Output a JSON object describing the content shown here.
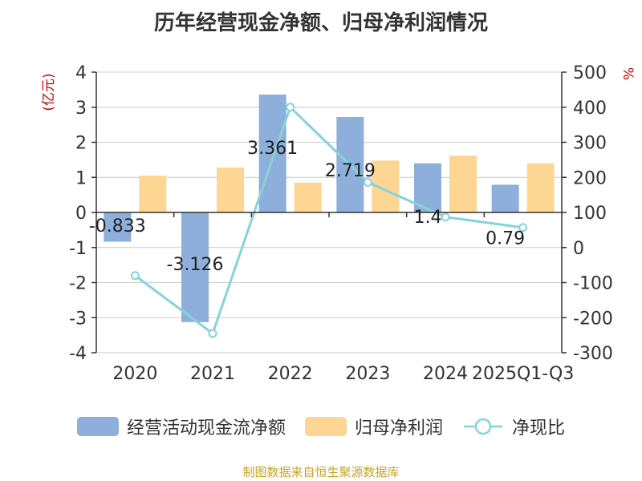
{
  "chart_data": {
    "type": "bar",
    "title": "历年经营现金净额、归母净利润情况",
    "categories": [
      "2020",
      "2021",
      "2022",
      "2023",
      "2024",
      "2025Q1-Q3"
    ],
    "y_left": {
      "label": "(亿元)",
      "ticks": [
        "4",
        "3",
        "2",
        "1",
        "0",
        "-1",
        "-2",
        "-3",
        "-4"
      ],
      "range": [
        -4,
        4
      ]
    },
    "y_right": {
      "label": "%",
      "ticks": [
        "500",
        "400",
        "300",
        "200",
        "100",
        "0",
        "-100",
        "-200",
        "-300"
      ],
      "range": [
        -300,
        500
      ]
    },
    "series": [
      {
        "name": "经营活动现金流净额",
        "type": "bar",
        "axis": "left",
        "color": "#8eaedb",
        "values": [
          -0.833,
          -3.126,
          3.361,
          2.719,
          1.4,
          0.79
        ],
        "labels": [
          "-0.833",
          "-3.126",
          "3.361",
          "2.719",
          "1.4",
          "0.79"
        ]
      },
      {
        "name": "归母净利润",
        "type": "bar",
        "axis": "left",
        "color": "#fdd694",
        "values": [
          1.05,
          1.28,
          0.85,
          1.48,
          1.62,
          1.4
        ]
      },
      {
        "name": "净现比",
        "type": "line",
        "axis": "right",
        "color": "#86d3d8",
        "values": [
          -80,
          -245,
          400,
          186,
          87,
          57
        ]
      }
    ],
    "grid": true,
    "legend": "bottom",
    "source": "制图数据来自恒生聚源数据库"
  }
}
